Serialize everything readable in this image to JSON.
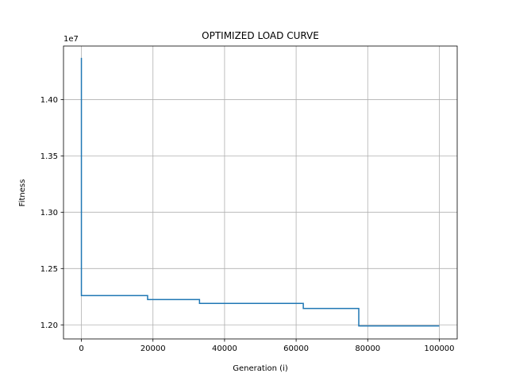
{
  "chart_data": {
    "type": "line",
    "title": "OPTIMIZED LOAD CURVE",
    "xlabel": "Generation (i)",
    "ylabel": "Fitness",
    "y_offset_label": "1e7",
    "xlim": [
      -5000,
      105000
    ],
    "ylim": [
      1.1875,
      1.4475
    ],
    "x_ticks": [
      0,
      20000,
      40000,
      60000,
      80000,
      100000
    ],
    "x_tick_labels": [
      "0",
      "20000",
      "40000",
      "60000",
      "80000",
      "100000"
    ],
    "y_ticks": [
      1.2,
      1.25,
      1.3,
      1.35,
      1.4
    ],
    "y_tick_labels": [
      "1.20",
      "1.25",
      "1.30",
      "1.35",
      "1.40"
    ],
    "grid": true,
    "series": [
      {
        "color": "#1f77b4",
        "x": [
          0,
          0,
          18500,
          18500,
          33000,
          33000,
          62000,
          62000,
          77500,
          77500,
          100000
        ],
        "y": [
          1.437,
          1.226,
          1.226,
          1.2225,
          1.2225,
          1.219,
          1.219,
          1.2145,
          1.2145,
          1.199,
          1.199
        ]
      }
    ]
  }
}
